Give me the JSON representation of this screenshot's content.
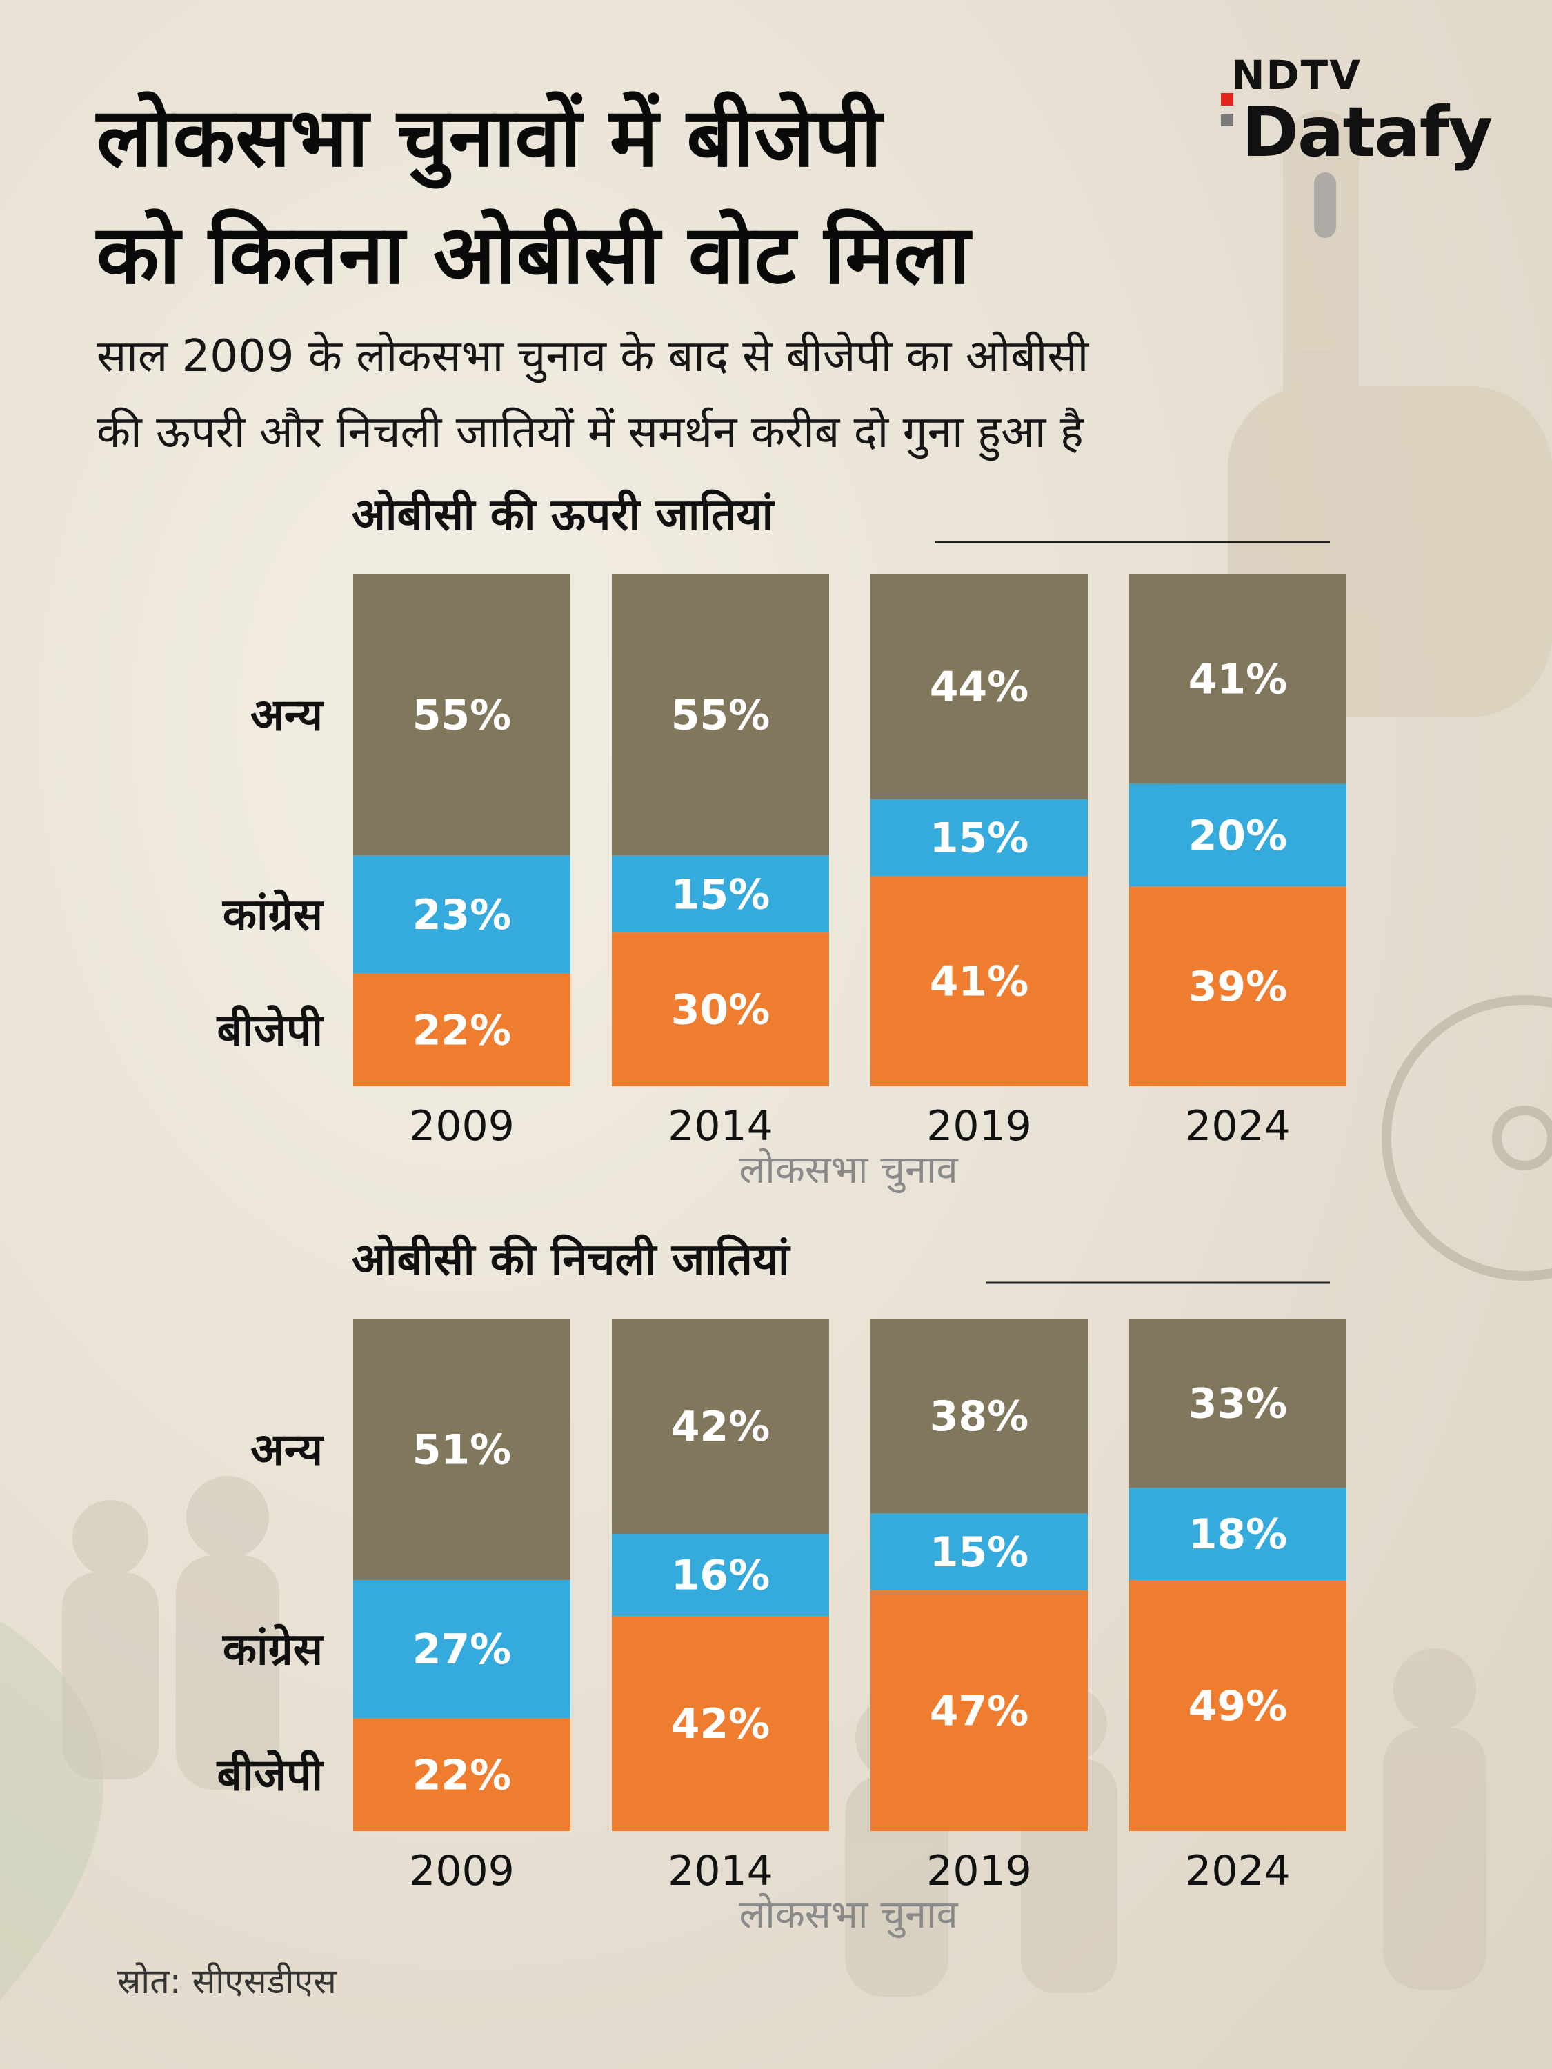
{
  "header": {
    "title_line1": "लोकसभा चुनावों में बीजेपी",
    "title_line2": "को कितना ओबीसी वोट मिला",
    "subtitle_line1": "साल 2009 के लोकसभा चुनाव के बाद से बीजेपी का ओबीसी",
    "subtitle_line2": "की ऊपरी और निचली जातियों में समर्थन करीब दो गुना हुआ है"
  },
  "logo": {
    "top": "NDTV",
    "bottom": "Datafy"
  },
  "source": "स्रोत: सीएसडीएस",
  "colors": {
    "others": "#80775c",
    "congress": "#34abdc",
    "bjp": "#ef7d30"
  },
  "chart_data": [
    {
      "type": "bar",
      "stacked": true,
      "title": "ओबीसी की ऊपरी जातियां",
      "xlabel": "लोकसभा चुनाव",
      "categories": [
        "2009",
        "2014",
        "2019",
        "2024"
      ],
      "unit": "%",
      "ylim": [
        0,
        100
      ],
      "series": [
        {
          "name": "बीजेपी",
          "color": "#ef7d30",
          "values": [
            22,
            30,
            41,
            39
          ]
        },
        {
          "name": "कांग्रेस",
          "color": "#34abdc",
          "values": [
            23,
            15,
            15,
            20
          ]
        },
        {
          "name": "अन्य",
          "color": "#80775c",
          "values": [
            55,
            55,
            44,
            41
          ]
        }
      ]
    },
    {
      "type": "bar",
      "stacked": true,
      "title": "ओबीसी की निचली जातियां",
      "xlabel": "लोकसभा चुनाव",
      "categories": [
        "2009",
        "2014",
        "2019",
        "2024"
      ],
      "unit": "%",
      "ylim": [
        0,
        100
      ],
      "series": [
        {
          "name": "बीजेपी",
          "color": "#ef7d30",
          "values": [
            22,
            42,
            47,
            49
          ]
        },
        {
          "name": "कांग्रेस",
          "color": "#34abdc",
          "values": [
            27,
            16,
            15,
            18
          ]
        },
        {
          "name": "अन्य",
          "color": "#80775c",
          "values": [
            51,
            42,
            38,
            33
          ]
        }
      ]
    }
  ]
}
